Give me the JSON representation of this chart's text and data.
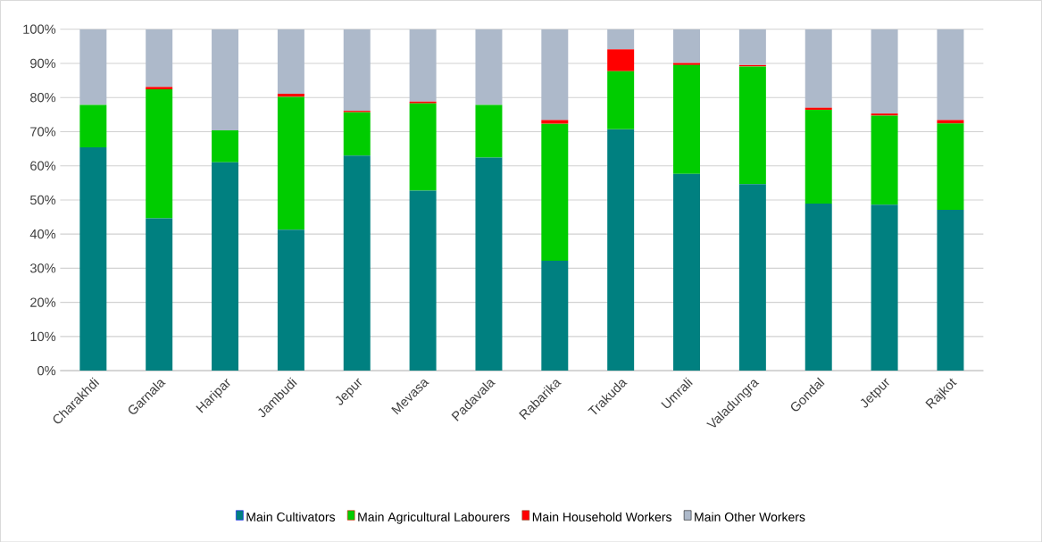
{
  "chart_data": {
    "type": "bar",
    "stacked": true,
    "categories": [
      "Charakhdi",
      "Garnala",
      "Haripar",
      "Jambudi",
      "Jepur",
      "Mevasa",
      "Padavala",
      "Rabarika",
      "Trakuda",
      "Umrali",
      "Valadungra",
      "Gondal",
      "Jetpur",
      "Rajkot"
    ],
    "series": [
      {
        "name": "Main Cultivators",
        "color": "#008080",
        "values": [
          65.4,
          44.6,
          61.0,
          41.3,
          63.0,
          52.7,
          62.4,
          32.2,
          70.7,
          57.6,
          54.6,
          48.9,
          48.6,
          47.1
        ]
      },
      {
        "name": "Main Agricultural Labourers",
        "color": "#00cc00",
        "values": [
          12.4,
          37.8,
          9.4,
          38.9,
          12.7,
          25.6,
          15.4,
          40.1,
          17.0,
          31.9,
          34.5,
          27.5,
          26.1,
          25.3
        ]
      },
      {
        "name": "Main Household Workers",
        "color": "#ff0000",
        "values": [
          0,
          0.7,
          0,
          0.9,
          0.4,
          0.5,
          0,
          1.1,
          6.4,
          0.6,
          0.4,
          0.6,
          0.6,
          1.0
        ]
      },
      {
        "name": "Main Other Workers",
        "color": "#adb9ca",
        "values": [
          22.2,
          16.9,
          29.6,
          18.9,
          23.9,
          21.2,
          22.2,
          26.6,
          5.9,
          9.9,
          10.5,
          23.0,
          24.7,
          26.6
        ]
      }
    ],
    "ylim": [
      0,
      100
    ],
    "yticks": [
      {
        "value": 0,
        "label": "0%"
      },
      {
        "value": 10,
        "label": "10%"
      },
      {
        "value": 20,
        "label": "20%"
      },
      {
        "value": 30,
        "label": "30%"
      },
      {
        "value": 40,
        "label": "40%"
      },
      {
        "value": 50,
        "label": "50%"
      },
      {
        "value": 60,
        "label": "60%"
      },
      {
        "value": 70,
        "label": "70%"
      },
      {
        "value": 80,
        "label": "80%"
      },
      {
        "value": 90,
        "label": "90%"
      },
      {
        "value": 100,
        "label": "100%"
      }
    ],
    "grid": "y",
    "legend": "bottom"
  }
}
